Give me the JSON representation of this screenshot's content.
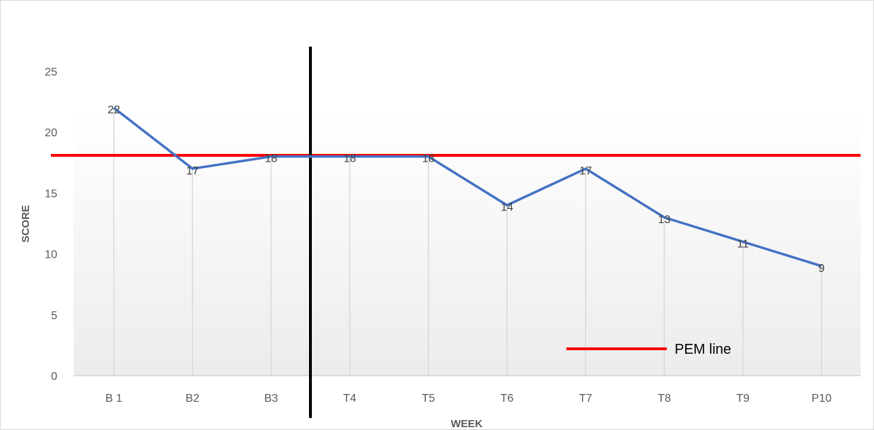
{
  "chart_data": {
    "type": "line",
    "title": "",
    "xlabel": "WEEK",
    "ylabel": "SCORE",
    "categories": [
      "B 1",
      "B2",
      "B3",
      "T4",
      "T5",
      "T6",
      "T7",
      "T8",
      "T9",
      "P10"
    ],
    "series": [
      {
        "name": "",
        "color": "#4472c4",
        "values": [
          22,
          17,
          18,
          18,
          18,
          14,
          17,
          13,
          11,
          9
        ],
        "labels": [
          "22",
          "17",
          "18",
          "18",
          "18",
          "14",
          "17",
          "13",
          "11",
          "9"
        ]
      }
    ],
    "ylim": [
      0,
      25
    ],
    "yticks": [
      "0",
      "5",
      "10",
      "15",
      "20",
      "25"
    ],
    "grid": "vertical drop lines",
    "phase_divider_after_category": 3,
    "phase_divider_color": "#000000",
    "reference_line": {
      "name": "PEM line",
      "value": 18.1,
      "color": "#ff0000"
    },
    "legend": {
      "placement": "bottom-right",
      "entries": [
        "PEM line"
      ]
    }
  }
}
